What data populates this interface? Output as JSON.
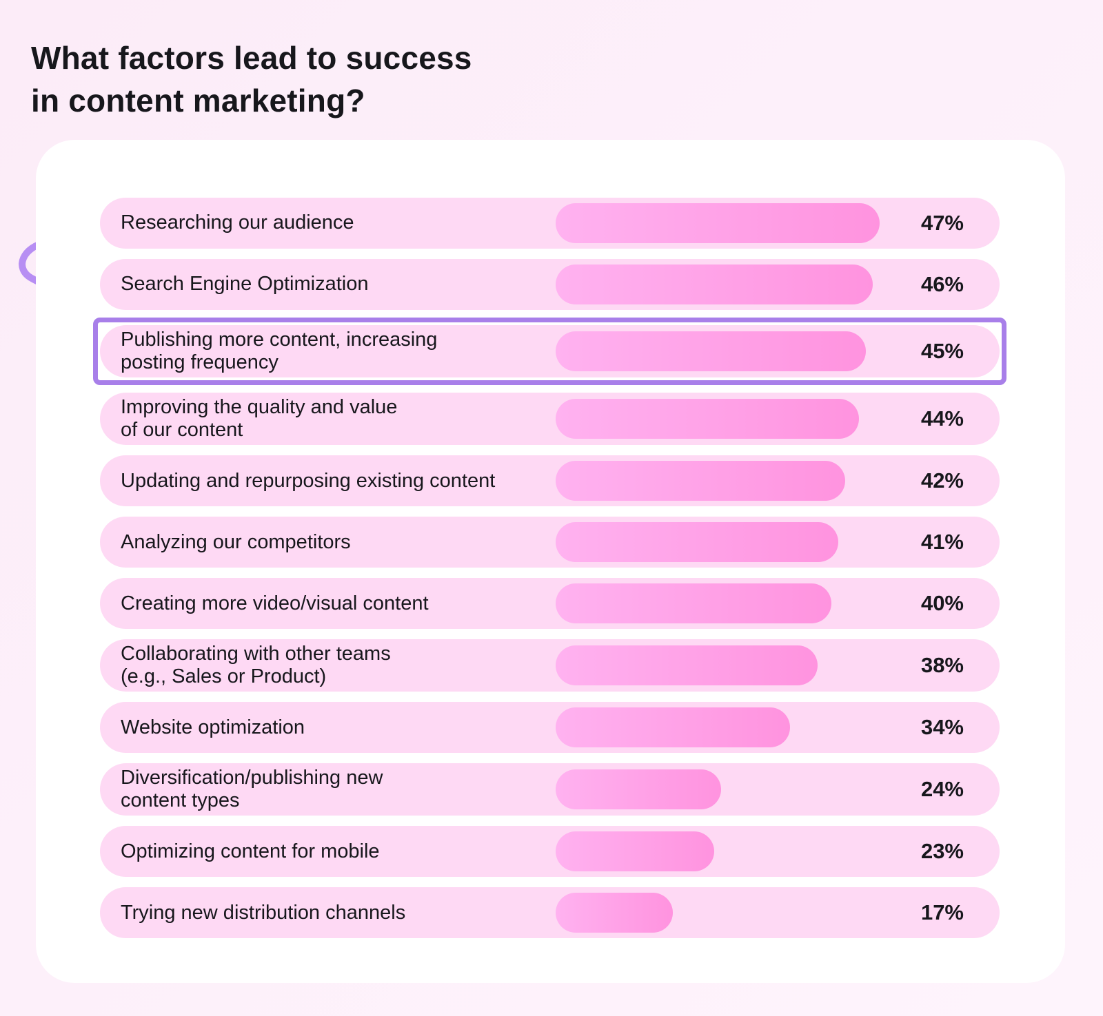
{
  "title": "What factors lead to success\nin content marketing?",
  "colors": {
    "background": "#fcedf8",
    "card": "#ffffff",
    "row_pill": "#fed9f4",
    "bar_gradient_start": "#ffb2f0",
    "bar_gradient_end": "#ff93df",
    "text": "#17171c",
    "highlight_border": "#a87fe9",
    "arrow": "#b78ef3"
  },
  "rows": [
    {
      "label": "Researching our audience",
      "value": 47,
      "pct": "47%",
      "highlighted": false
    },
    {
      "label": "Search Engine Optimization",
      "value": 46,
      "pct": "46%",
      "highlighted": false
    },
    {
      "label": "Publishing more content, increasing\nposting frequency",
      "value": 45,
      "pct": "45%",
      "highlighted": true
    },
    {
      "label": "Improving the quality and value\nof our content",
      "value": 44,
      "pct": "44%",
      "highlighted": false
    },
    {
      "label": "Updating and repurposing existing content",
      "value": 42,
      "pct": "42%",
      "highlighted": false
    },
    {
      "label": "Analyzing our competitors",
      "value": 41,
      "pct": "41%",
      "highlighted": false
    },
    {
      "label": "Creating more video/visual content",
      "value": 40,
      "pct": "40%",
      "highlighted": false
    },
    {
      "label": "Collaborating with other teams\n(e.g., Sales or Product)",
      "value": 38,
      "pct": "38%",
      "highlighted": false
    },
    {
      "label": "Website optimization",
      "value": 34,
      "pct": "34%",
      "highlighted": false
    },
    {
      "label": "Diversification/publishing new\ncontent types",
      "value": 24,
      "pct": "24%",
      "highlighted": false
    },
    {
      "label": "Optimizing content for mobile",
      "value": 23,
      "pct": "23%",
      "highlighted": false
    },
    {
      "label": "Trying new distribution channels",
      "value": 17,
      "pct": "17%",
      "highlighted": false
    }
  ],
  "chart_data": {
    "type": "bar",
    "orientation": "horizontal",
    "title": "What factors lead to success in content marketing?",
    "categories": [
      "Researching our audience",
      "Search Engine Optimization",
      "Publishing more content, increasing posting frequency",
      "Improving the quality and value of our content",
      "Updating and repurposing existing content",
      "Analyzing our competitors",
      "Creating more video/visual content",
      "Collaborating with other teams (e.g., Sales or Product)",
      "Website optimization",
      "Diversification/publishing new content types",
      "Optimizing content for mobile",
      "Trying new distribution channels"
    ],
    "values": [
      47,
      46,
      45,
      44,
      42,
      41,
      40,
      38,
      34,
      24,
      23,
      17
    ],
    "unit": "%",
    "xlim": [
      0,
      47
    ],
    "grid": false,
    "legend": false,
    "annotations": [
      "Purple arrow and purple outline highlight the row 'Publishing more content, increasing posting frequency' (45%)"
    ]
  }
}
